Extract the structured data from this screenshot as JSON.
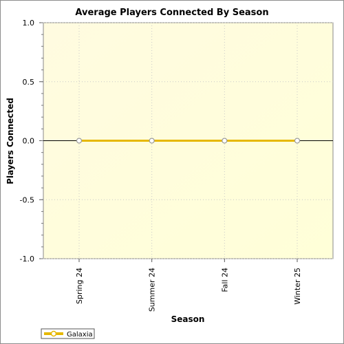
{
  "chart_data": {
    "type": "line",
    "title": "Average Players Connected By Season",
    "xlabel": "Season",
    "ylabel": "Players Connected",
    "categories": [
      "Spring 24",
      "Summer 24",
      "Fall 24",
      "Winter 25"
    ],
    "series": [
      {
        "name": "Galaxia",
        "values": [
          0,
          0,
          0,
          0
        ],
        "color": "#e6b800"
      }
    ],
    "ylim": [
      -1.0,
      1.0
    ],
    "yticks": [
      1.0,
      0.5,
      0.0,
      -0.5,
      -1.0
    ],
    "ytick_labels": [
      "1.0",
      "0.5",
      "0.0",
      "-0.5",
      "-1.0"
    ],
    "grid": true,
    "legend_position": "bottom-left",
    "colors": {
      "plot_background": "#fffde6",
      "zero_line": "#000000",
      "grid": "#c8c8c8"
    }
  }
}
